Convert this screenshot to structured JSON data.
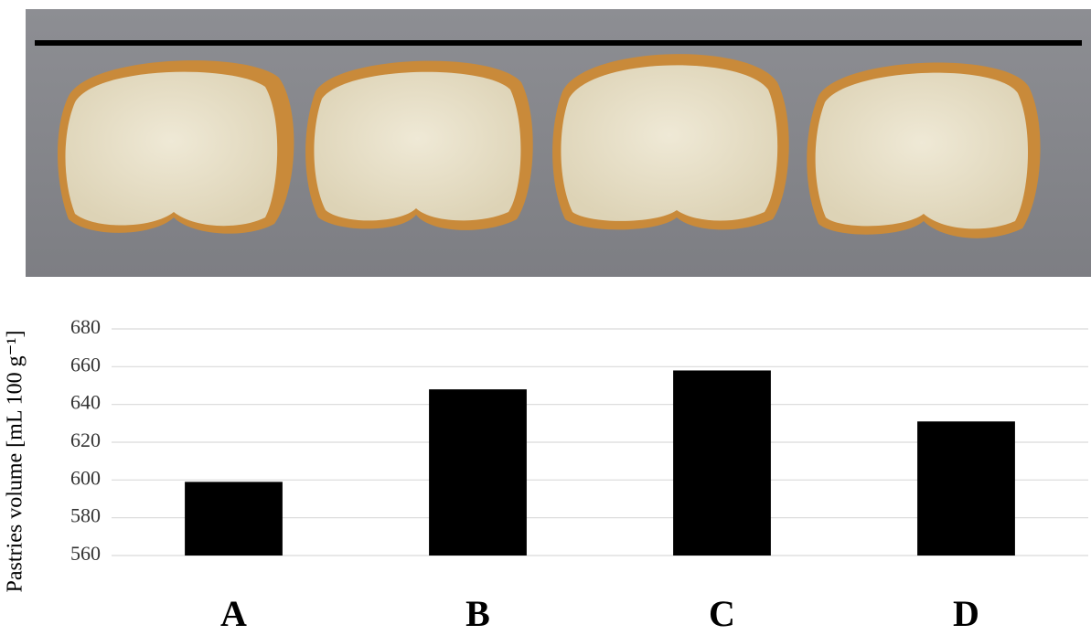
{
  "chart_data": {
    "type": "bar",
    "y_label": "Pastries volume [mL 100 g⁻¹]",
    "categories": [
      "A",
      "B",
      "C",
      "D"
    ],
    "values": [
      599,
      648,
      658,
      631
    ],
    "color": "#000000",
    "ylim": [
      560,
      680
    ],
    "yticks": [
      560,
      580,
      600,
      620,
      640,
      660,
      680
    ],
    "grid": true
  }
}
